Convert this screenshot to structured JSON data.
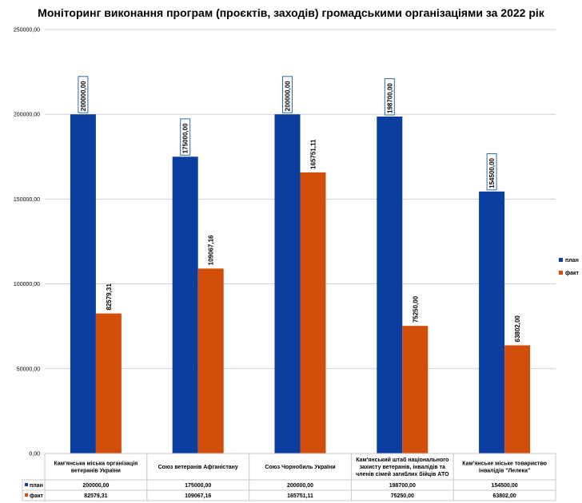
{
  "chart_data": {
    "type": "bar",
    "title": "Моніторинг виконання програм (проєктів, заходів) громадськими організаціями за 2022 рік",
    "categories": [
      [
        "Кам'янська міська організація",
        "ветеранів України"
      ],
      [
        "Союз ветеранів Афганістану"
      ],
      [
        "Союз Чорнобиль України"
      ],
      [
        "Кам'янський штаб національного",
        "захисту ветеранів, інвалідів та",
        "членів сімей загиблих бійців АТО"
      ],
      [
        "Кам'янське міське товариство",
        "інвалідів \"Лелека\""
      ]
    ],
    "series": [
      {
        "name": "план",
        "color": "#0c3ea1",
        "values": [
          200000.0,
          175000.0,
          200000.0,
          198700.0,
          154500.0
        ],
        "labels": [
          "200000,00",
          "175000,00",
          "200000,00",
          "198700,00",
          "154500,00"
        ]
      },
      {
        "name": "факт",
        "color": "#d24f0b",
        "values": [
          82579.31,
          109067.16,
          165751.11,
          75250.0,
          63802.0
        ],
        "labels": [
          "82579,31",
          "109067,16",
          "165751,11",
          "75250,00",
          "63802,00"
        ]
      }
    ],
    "ylim": [
      0,
      250000
    ],
    "yticks": [
      {
        "value": 0,
        "label": "0,00"
      },
      {
        "value": 50000,
        "label": "50000,00"
      },
      {
        "value": 100000,
        "label": "100000,00"
      },
      {
        "value": 150000,
        "label": "150000,00"
      },
      {
        "value": 200000,
        "label": "200000,00"
      },
      {
        "value": 250000,
        "label": "250000,00"
      }
    ],
    "grid": true,
    "legend": "right",
    "data_table": true
  }
}
